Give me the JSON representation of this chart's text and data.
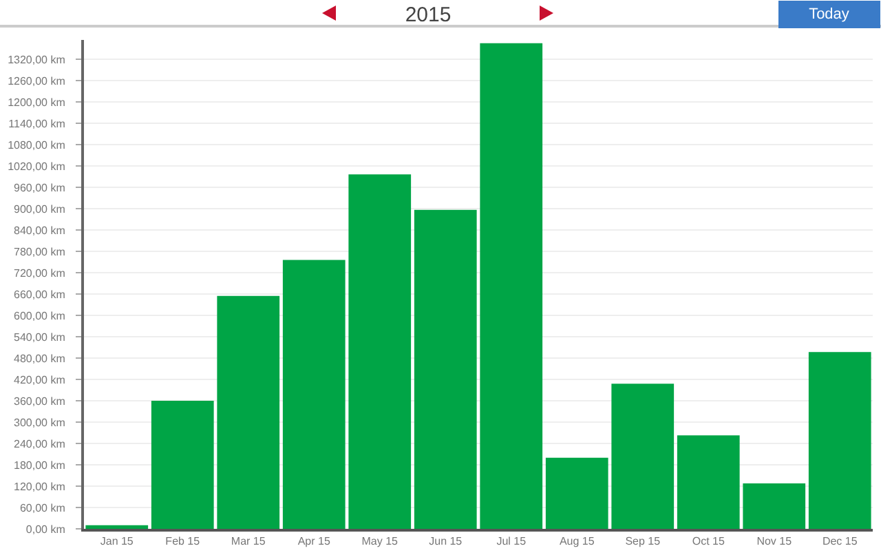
{
  "chart_data": {
    "type": "bar",
    "title": "2015",
    "annotations": [
      "Today"
    ],
    "categories": [
      "Jan 15",
      "Feb 15",
      "Mar 15",
      "Apr 15",
      "May 15",
      "Jun 15",
      "Jul 15",
      "Aug 15",
      "Sep 15",
      "Oct 15",
      "Nov 15",
      "Dec 15"
    ],
    "values": [
      10,
      360,
      655,
      756,
      997,
      897,
      1366,
      200,
      408,
      263,
      128,
      497
    ],
    "color": "#00a546",
    "ylim": [
      0,
      1375
    ],
    "yticks": [
      {
        "value": 0,
        "label": "0,00 km"
      },
      {
        "value": 60,
        "label": "60,00 km"
      },
      {
        "value": 120,
        "label": "120,00 km"
      },
      {
        "value": 180,
        "label": "180,00 km"
      },
      {
        "value": 240,
        "label": "240,00 km"
      },
      {
        "value": 300,
        "label": "300,00 km"
      },
      {
        "value": 360,
        "label": "360,00 km"
      },
      {
        "value": 420,
        "label": "420,00 km"
      },
      {
        "value": 480,
        "label": "480,00 km"
      },
      {
        "value": 540,
        "label": "540,00 km"
      },
      {
        "value": 600,
        "label": "600,00 km"
      },
      {
        "value": 660,
        "label": "660,00 km"
      },
      {
        "value": 720,
        "label": "720,00 km"
      },
      {
        "value": 780,
        "label": "780,00 km"
      },
      {
        "value": 840,
        "label": "840,00 km"
      },
      {
        "value": 900,
        "label": "900,00 km"
      },
      {
        "value": 960,
        "label": "960,00 km"
      },
      {
        "value": 1020,
        "label": "1020,00 km"
      },
      {
        "value": 1080,
        "label": "1080,00 km"
      },
      {
        "value": 1140,
        "label": "1140,00 km"
      },
      {
        "value": 1200,
        "label": "1200,00 km"
      },
      {
        "value": 1260,
        "label": "1260,00 km"
      },
      {
        "value": 1320,
        "label": "1320,00 km"
      }
    ],
    "grid": "y"
  }
}
